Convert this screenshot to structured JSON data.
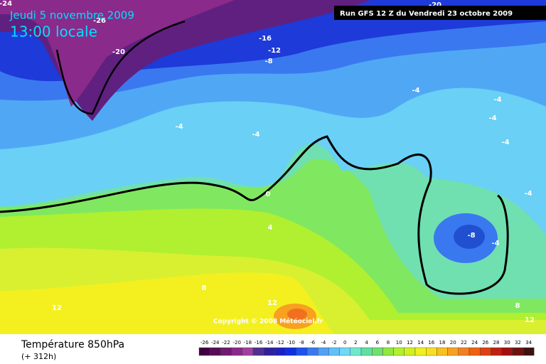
{
  "header": {
    "date": "Jeudi 5 novembre 2009",
    "time": "13:00 locale",
    "run": "Run GFS 12 Z du Vendredi 23 octobre 2009"
  },
  "copyright": "Copyright © 2008 Météociel.fr",
  "caption": {
    "title": "Température 850hPa",
    "lead": "(+ 312h)"
  },
  "contour_labels": [
    "-24",
    "-26",
    "-20",
    "-16",
    "-12",
    "-8",
    "-20",
    "-4",
    "-4",
    "-4",
    "-4",
    "-4",
    "-4",
    "-4",
    "0",
    "4",
    "-8",
    "-4",
    "8",
    "12",
    "12",
    "8",
    "12"
  ],
  "colorbar": {
    "ticks": [
      -26,
      -24,
      -22,
      -20,
      -18,
      -16,
      -14,
      -12,
      -10,
      -8,
      -6,
      -4,
      -2,
      0,
      2,
      4,
      6,
      8,
      10,
      12,
      14,
      16,
      18,
      20,
      22,
      24,
      26,
      28,
      30,
      32,
      34
    ],
    "colors": [
      "#400040",
      "#5a0a5a",
      "#701a70",
      "#8a2a8a",
      "#a040a0",
      "#503090",
      "#3020a0",
      "#2020c0",
      "#1030e0",
      "#2050f0",
      "#3a78f0",
      "#50a0f5",
      "#60c0f8",
      "#70d8f8",
      "#70e8d0",
      "#60e0a0",
      "#70e070",
      "#90e840",
      "#b0f030",
      "#d0f020",
      "#f0f020",
      "#f8e020",
      "#f8c020",
      "#f8a020",
      "#f08020",
      "#f06010",
      "#e04010",
      "#c02010",
      "#a01010",
      "#701010",
      "#401010"
    ]
  }
}
